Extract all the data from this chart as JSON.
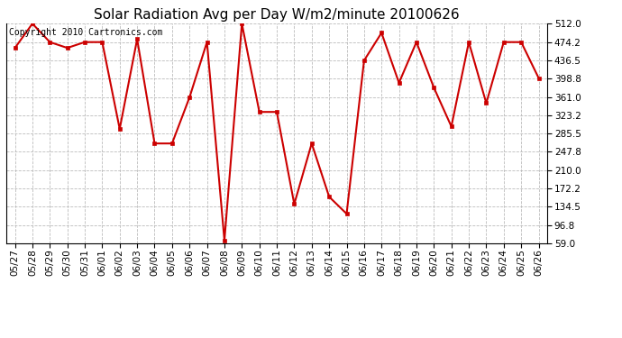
{
  "title": "Solar Radiation Avg per Day W/m2/minute 20100626",
  "copyright": "Copyright 2010 Cartronics.com",
  "dates": [
    "05/27",
    "05/28",
    "05/29",
    "05/30",
    "05/31",
    "06/01",
    "06/02",
    "06/03",
    "06/04",
    "06/05",
    "06/06",
    "06/07",
    "06/08",
    "06/09",
    "06/10",
    "06/11",
    "06/12",
    "06/13",
    "06/14",
    "06/15",
    "06/16",
    "06/17",
    "06/18",
    "06/19",
    "06/20",
    "06/21",
    "06/22",
    "06/23",
    "06/24",
    "06/25",
    "06/26"
  ],
  "values": [
    462,
    512,
    474,
    462,
    474,
    474,
    295,
    480,
    265,
    265,
    360,
    474,
    65,
    512,
    330,
    330,
    140,
    265,
    155,
    120,
    436,
    493,
    390,
    474,
    380,
    300,
    474,
    348,
    474,
    474,
    400
  ],
  "line_color": "#cc0000",
  "marker_color": "#cc0000",
  "bg_color": "#ffffff",
  "grid_color": "#bbbbbb",
  "yticks": [
    59.0,
    96.8,
    134.5,
    172.2,
    210.0,
    247.8,
    285.5,
    323.2,
    361.0,
    398.8,
    436.5,
    474.2,
    512.0
  ],
  "ymin": 59.0,
  "ymax": 512.0,
  "title_fontsize": 11,
  "copyright_fontsize": 7,
  "tick_fontsize": 7.5
}
